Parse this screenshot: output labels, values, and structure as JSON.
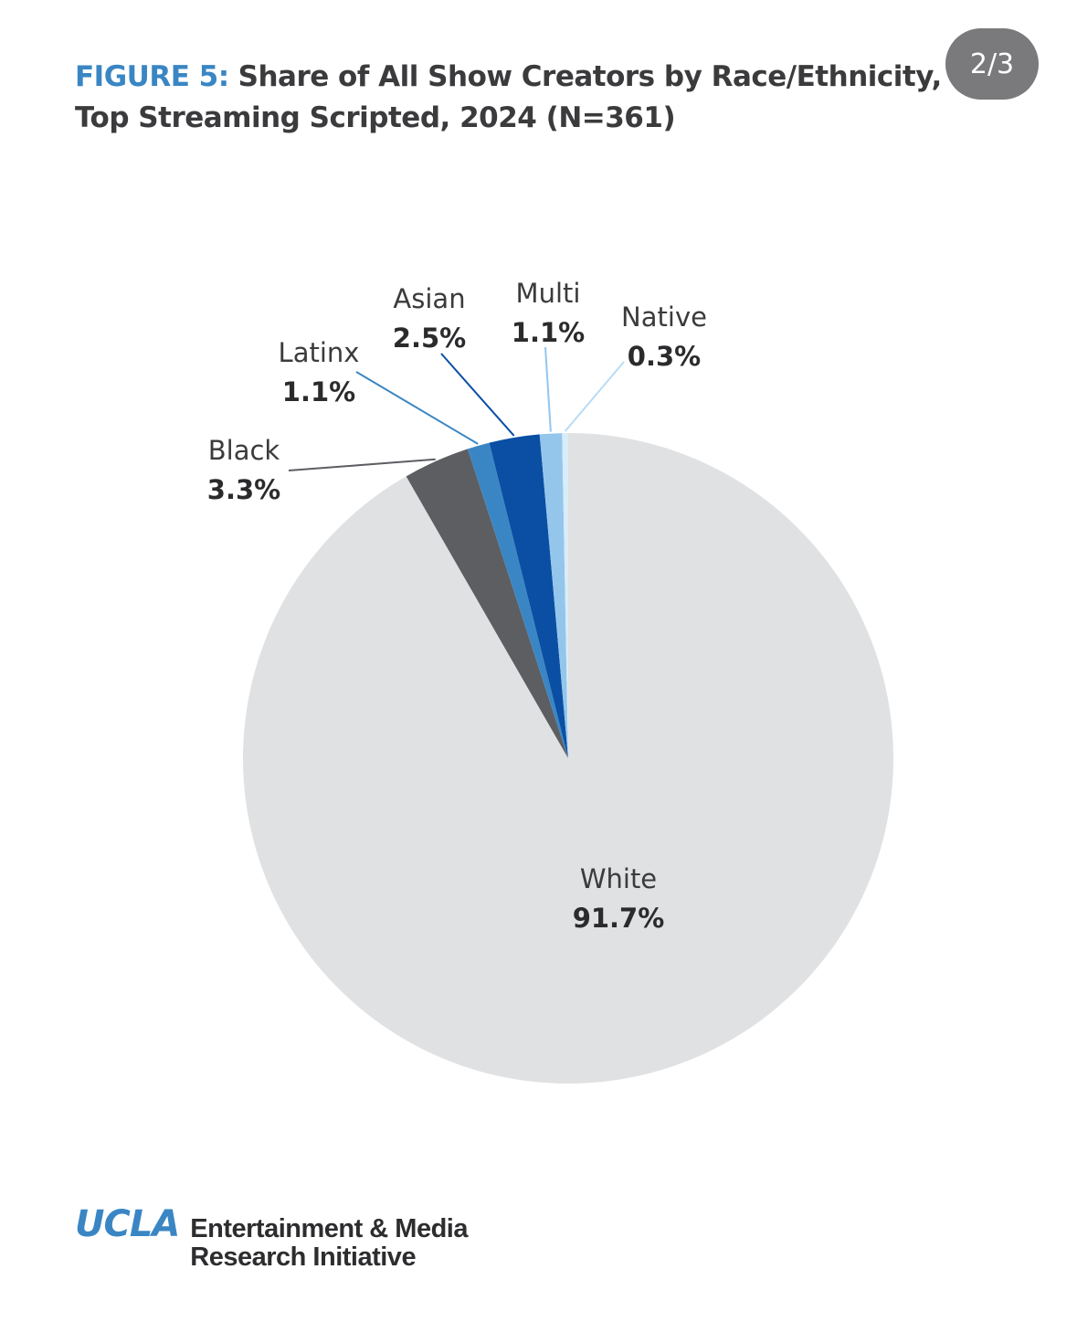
{
  "header": {
    "figure_label": "FIGURE 5:",
    "title_line1": "Share of All Show Creators by Race/Ethnicity,",
    "title_line2": "Top Streaming Scripted, 2024 (N=361)"
  },
  "page_indicator": "2/3",
  "chart_data": {
    "type": "pie",
    "title": "Share of All Show Creators by Race/Ethnicity, Top Streaming Scripted, 2024 (N=361)",
    "slices": [
      {
        "name": "White",
        "value": 91.7,
        "label": "91.7%",
        "color": "#e0e1e3"
      },
      {
        "name": "Black",
        "value": 3.3,
        "label": "3.3%",
        "color": "#5d5e62"
      },
      {
        "name": "Latinx",
        "value": 1.1,
        "label": "1.1%",
        "color": "#3a86c4"
      },
      {
        "name": "Asian",
        "value": 2.5,
        "label": "2.5%",
        "color": "#0a4fa3"
      },
      {
        "name": "Multi",
        "value": 1.1,
        "label": "1.1%",
        "color": "#94c6ec"
      },
      {
        "name": "Native",
        "value": 0.3,
        "label": "0.3%",
        "color": "#d9ecf9"
      }
    ]
  },
  "footer": {
    "logo": "UCLA",
    "org_line1": "Entertainment & Media",
    "org_line2": "Research Initiative"
  }
}
